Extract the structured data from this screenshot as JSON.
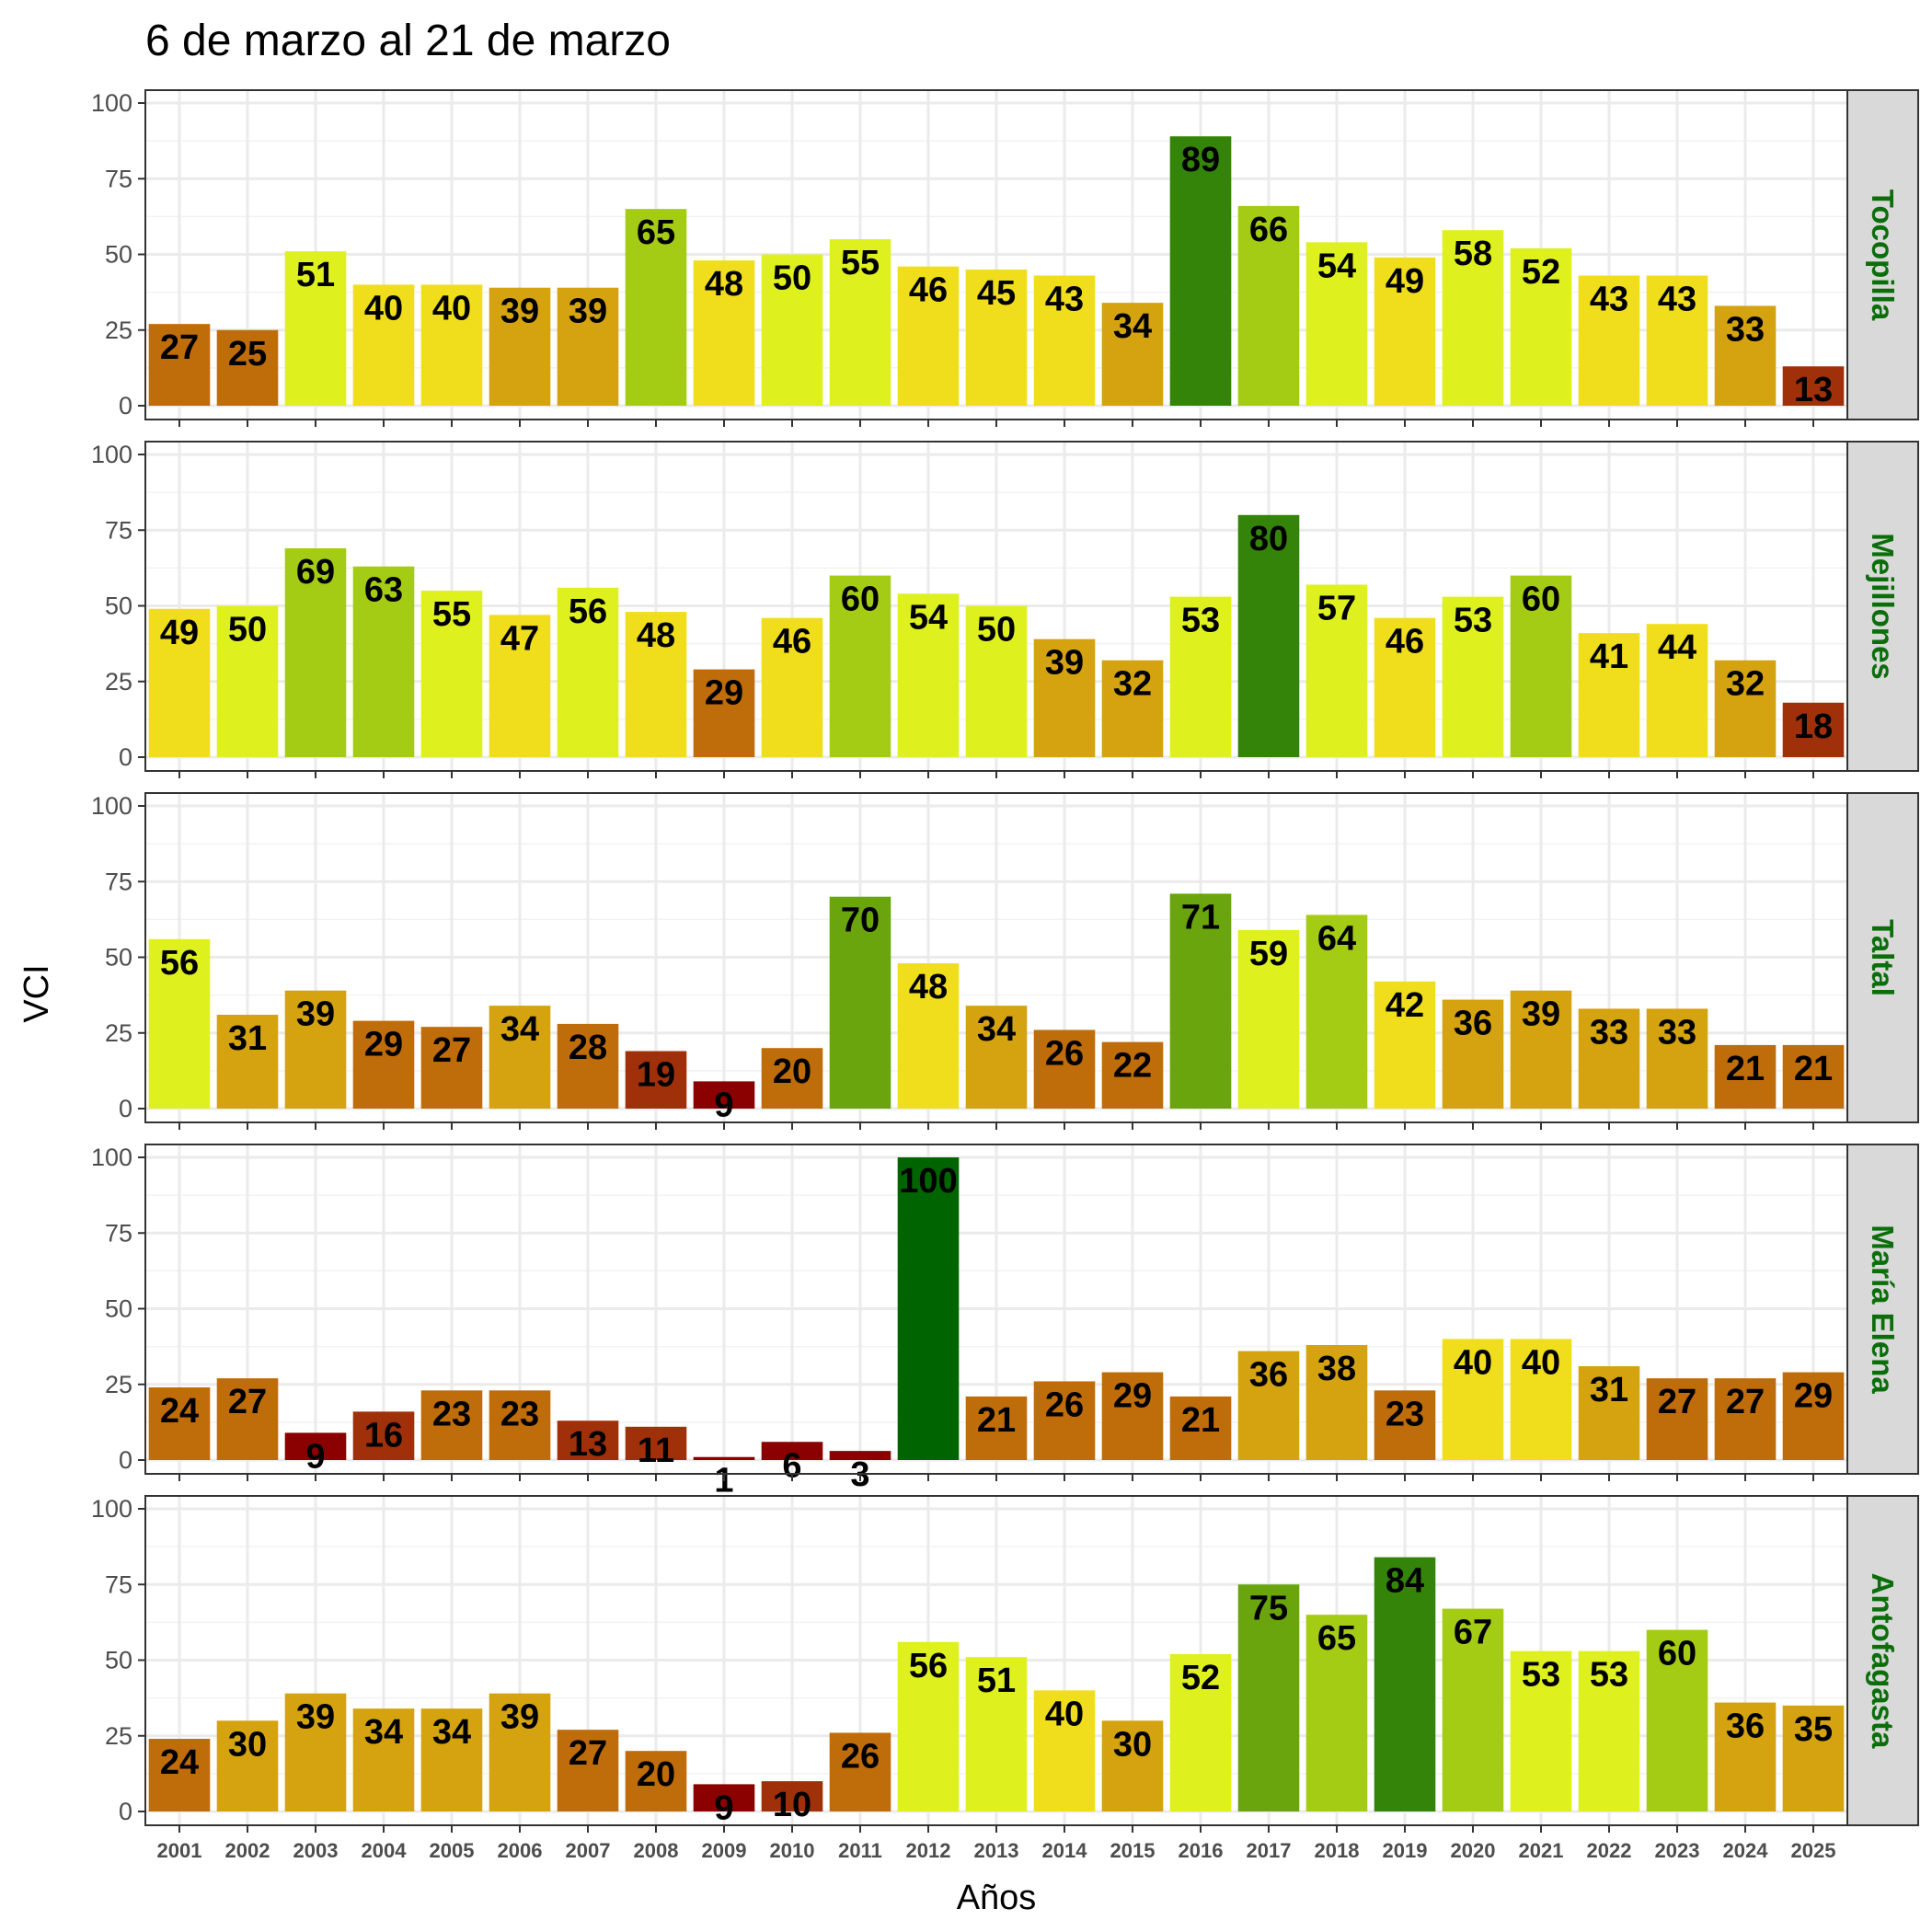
{
  "chart_data": {
    "type": "bar",
    "title": "6 de marzo al 21 de marzo",
    "xlabel": "Años",
    "ylabel": "VCI",
    "ylim": [
      0,
      100
    ],
    "yticks": [
      "0",
      "25",
      "50",
      "75",
      "100"
    ],
    "categories": [
      "2001",
      "2002",
      "2003",
      "2004",
      "2005",
      "2006",
      "2007",
      "2008",
      "2009",
      "2010",
      "2011",
      "2012",
      "2013",
      "2014",
      "2015",
      "2016",
      "2017",
      "2018",
      "2019",
      "2020",
      "2021",
      "2022",
      "2023",
      "2024",
      "2025"
    ],
    "grid": true,
    "legend": "none",
    "panels": [
      {
        "name": "Tocopilla",
        "values": [
          27,
          25,
          51,
          40,
          40,
          39,
          39,
          65,
          48,
          50,
          55,
          46,
          45,
          43,
          34,
          89,
          66,
          54,
          49,
          58,
          52,
          43,
          43,
          33,
          13
        ]
      },
      {
        "name": "Mejillones",
        "values": [
          49,
          50,
          69,
          63,
          55,
          47,
          56,
          48,
          29,
          46,
          60,
          54,
          50,
          39,
          32,
          53,
          80,
          57,
          46,
          53,
          60,
          41,
          44,
          32,
          18
        ]
      },
      {
        "name": "Taltal",
        "values": [
          56,
          31,
          39,
          29,
          27,
          34,
          28,
          19,
          9,
          20,
          70,
          48,
          34,
          26,
          22,
          71,
          59,
          64,
          42,
          36,
          39,
          33,
          33,
          21,
          21
        ]
      },
      {
        "name": "María Elena",
        "values": [
          24,
          27,
          9,
          16,
          23,
          23,
          13,
          11,
          1,
          6,
          3,
          100,
          21,
          26,
          29,
          21,
          36,
          38,
          23,
          40,
          40,
          31,
          27,
          27,
          29
        ]
      },
      {
        "name": "Antofagasta",
        "values": [
          24,
          30,
          39,
          34,
          34,
          39,
          27,
          20,
          9,
          10,
          26,
          56,
          51,
          40,
          30,
          52,
          75,
          65,
          84,
          67,
          53,
          53,
          60,
          36,
          35
        ]
      }
    ],
    "colors": {
      "c0": "#8b0000",
      "c10": "#a0300a",
      "c20": "#bf6c0a",
      "c30": "#d4a30f",
      "c40": "#f0de1c",
      "c50": "#def01e",
      "c60": "#a5cc14",
      "c70": "#6aa50d",
      "c80": "#34840a",
      "c90": "#006400",
      "strip_bg": "#d9d9d9",
      "strip_text": "#0b6e0b"
    }
  }
}
